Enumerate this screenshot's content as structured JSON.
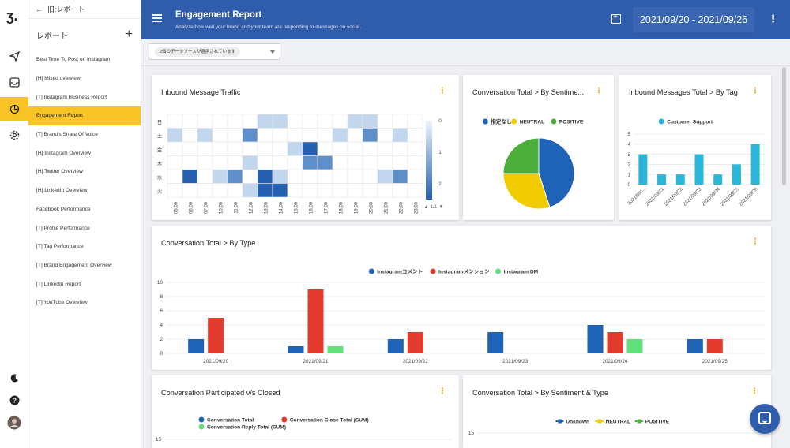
{
  "menu": {
    "back_label": "旧:レポート",
    "section_label": "レポート",
    "add_label": "+",
    "items": [
      "Best Time To Post on Instagram",
      "[H] Mixed overview",
      "[T] Instagram Business Report",
      "Engagement Report",
      "[T] Brand's Share Of Voice",
      "[H] Instagram Overview",
      "[H] Twitter Overview",
      "[H] LinkedIn Overview",
      "Facebook Performance",
      "[T] Profile Performance",
      "[T] Tag Performance",
      "[T] Brand Engagement Overview",
      "[T] LinkedIn Report",
      "[T] YouTube Overview"
    ],
    "active_index": 3
  },
  "header": {
    "title": "Engagement Report",
    "subtitle": "Analyze how well your brand and your team are responding to messages on social.",
    "date_range": "2021/09/20 - 2021/09/26"
  },
  "datasource": {
    "chip": "2個のデータソースが選択されています"
  },
  "cards": {
    "heatmap": {
      "title": "Inbound Message Traffic",
      "pager": "1/1"
    },
    "sentiment_pie": {
      "title": "Conversation Total > By Sentime..."
    },
    "tag_bar": {
      "title": "Inbound Messages Total > By Tag"
    },
    "type_bar": {
      "title": "Conversation Total > By Type"
    },
    "participated": {
      "title": "Conversation Participated v/s Closed"
    },
    "sentiment_type": {
      "title": "Conversation Total > By Sentiment & Type"
    }
  },
  "colors": {
    "brand": "#2f5cab",
    "accent": "#f7c325",
    "more": "#f0a800"
  },
  "chart_data": [
    {
      "id": "heatmap",
      "type": "heatmap",
      "title": "Inbound Message Traffic",
      "y_categories": [
        "日",
        "土",
        "金",
        "木",
        "水",
        "火"
      ],
      "x_categories": [
        "05:00",
        "06:00",
        "07:00",
        "10:00",
        "11:00",
        "12:00",
        "13:00",
        "14:00",
        "15:00",
        "16:00",
        "17:00",
        "18:00",
        "19:00",
        "20:00",
        "21:00",
        "22:00",
        "23:00"
      ],
      "values": [
        [
          0,
          0,
          0,
          0,
          0,
          0,
          1,
          1,
          0,
          0,
          0,
          0,
          1,
          1,
          0,
          0,
          0
        ],
        [
          1,
          0,
          1,
          0,
          0,
          2,
          0,
          0,
          0,
          0,
          0,
          1,
          0,
          2,
          0,
          1,
          0
        ],
        [
          0,
          0,
          0,
          0,
          0,
          0,
          0,
          0,
          1,
          3,
          0,
          0,
          0,
          0,
          0,
          0,
          0
        ],
        [
          0,
          0,
          0,
          0,
          0,
          1,
          0,
          0,
          0,
          2,
          2,
          0,
          0,
          0,
          0,
          0,
          0
        ],
        [
          0,
          3,
          0,
          1,
          2,
          0,
          3,
          1,
          0,
          0,
          0,
          0,
          0,
          0,
          1,
          2,
          0
        ],
        [
          0,
          0,
          0,
          0,
          0,
          1,
          3,
          3,
          0,
          0,
          0,
          0,
          0,
          0,
          0,
          0,
          0
        ]
      ],
      "legend_ticks": [
        "0",
        "1",
        "2"
      ]
    },
    {
      "id": "sentiment_pie",
      "type": "pie",
      "title": "Conversation Total > By Sentime...",
      "legend": "top",
      "slices": [
        {
          "label": "指定なし",
          "value": 45,
          "color": "#1f63b6"
        },
        {
          "label": "NEUTRAL",
          "value": 30,
          "color": "#f0cb00"
        },
        {
          "label": "POSITIVE",
          "value": 25,
          "color": "#4caf3a"
        }
      ]
    },
    {
      "id": "tag_bar",
      "type": "bar",
      "title": "Inbound Messages Total > By Tag",
      "legend": "top",
      "categories": [
        "2021/09/...",
        "2021/09/21",
        "2021/09/22",
        "2021/09/23",
        "2021/09/24",
        "2021/09/25",
        "2021/09/26"
      ],
      "series": [
        {
          "name": "Customer Support",
          "values": [
            3,
            1,
            1,
            3,
            1,
            2,
            4
          ],
          "color": "#29b6d8"
        }
      ],
      "ylim": [
        0,
        5
      ],
      "yticks": [
        0,
        1,
        2,
        3,
        4,
        5
      ]
    },
    {
      "id": "type_bar",
      "type": "bar",
      "title": "Conversation Total > By Type",
      "legend": "top",
      "categories": [
        "2021/09/20",
        "2021/09/21",
        "2021/09/22",
        "2021/09/23",
        "2021/09/24",
        "2021/09/25"
      ],
      "series": [
        {
          "name": "Instagramコメント",
          "values": [
            2,
            1,
            2,
            3,
            4,
            2
          ],
          "color": "#1f63b6"
        },
        {
          "name": "Instagramメンション",
          "values": [
            5,
            9,
            3,
            0,
            3,
            2
          ],
          "color": "#e33b2e"
        },
        {
          "name": "Instagram DM",
          "values": [
            0,
            1,
            0,
            0,
            2,
            0
          ],
          "color": "#5fe07a"
        }
      ],
      "ylim": [
        0,
        10
      ],
      "yticks": [
        0,
        2,
        4,
        6,
        8,
        10
      ]
    },
    {
      "id": "participated",
      "type": "line",
      "title": "Conversation Participated v/s Closed",
      "legend": "top",
      "series": [
        {
          "name": "Conversation Total",
          "color": "#1f63b6"
        },
        {
          "name": "Conversation Close Total (SUM)",
          "color": "#e33b2e"
        },
        {
          "name": "Conversation Reply Total (SUM)",
          "color": "#5fe07a"
        }
      ],
      "ytick_top": "15"
    },
    {
      "id": "sentiment_type",
      "type": "line",
      "title": "Conversation Total > By Sentiment & Type",
      "legend": "top",
      "series": [
        {
          "name": "Unknown",
          "color": "#1f63b6"
        },
        {
          "name": "NEUTRAL",
          "color": "#f0cb00"
        },
        {
          "name": "POSITIVE",
          "color": "#4caf3a"
        }
      ],
      "ytick_top": "15"
    }
  ]
}
